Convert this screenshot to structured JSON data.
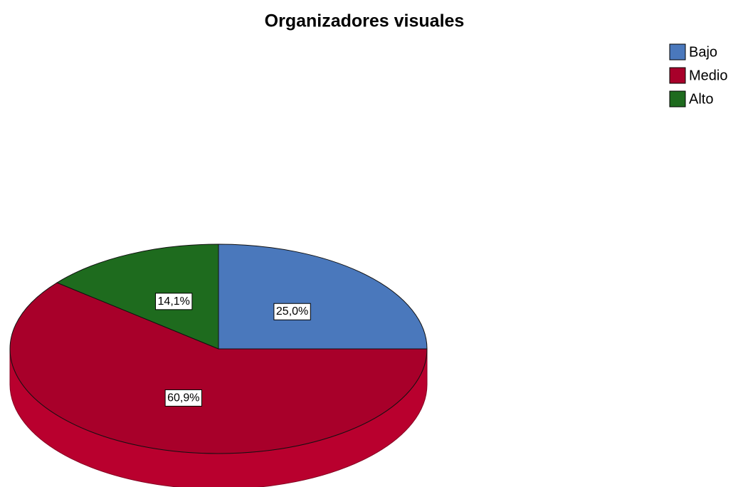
{
  "chart_data": {
    "type": "pie",
    "title": "Organizadores visuales",
    "categories": [
      "Bajo",
      "Medio",
      "Alto"
    ],
    "values": [
      25.0,
      60.9,
      14.1
    ],
    "value_labels": [
      "25,0%",
      "60,9%",
      "14,1%"
    ],
    "colors": [
      "#4a78bc",
      "#a8002a",
      "#1e6b1e"
    ],
    "legend": "top-right"
  }
}
